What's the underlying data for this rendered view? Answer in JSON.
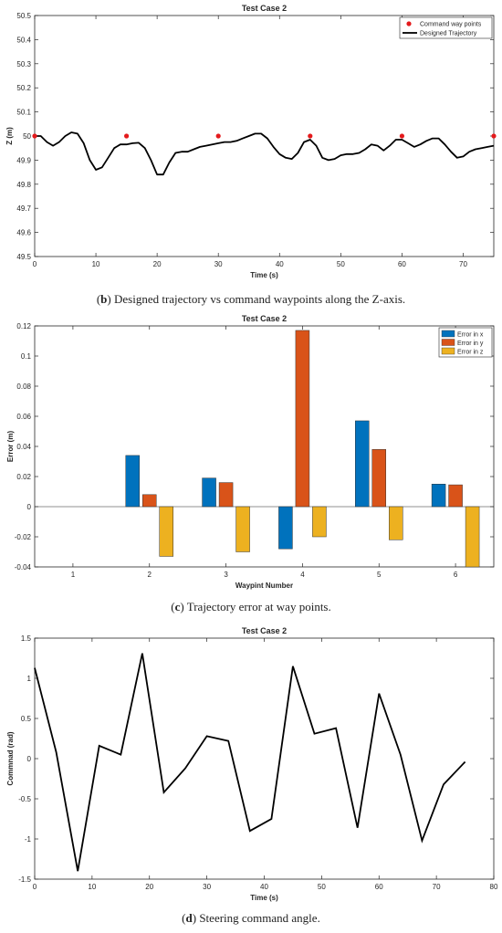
{
  "chart_data": [
    {
      "type": "line",
      "title": "Test Case 2",
      "xlabel": "Time (s)",
      "ylabel": "Z (m)",
      "xlim": [
        0,
        75
      ],
      "ylim": [
        49.5,
        50.5
      ],
      "xticks": [
        0,
        10,
        20,
        30,
        40,
        50,
        60,
        70
      ],
      "yticks": [
        49.5,
        49.6,
        49.7,
        49.8,
        49.9,
        50,
        50.1,
        50.2,
        50.3,
        50.4,
        50.5
      ],
      "ytick_labels": [
        "49.5",
        "49.6",
        "49.7",
        "49.8",
        "49.9",
        "50",
        "50.1",
        "50.2",
        "50.3",
        "50.4",
        "50.5"
      ],
      "legend": "top-right",
      "series": [
        {
          "name": "Command way points",
          "kind": "scatter",
          "color": "#e41a1c",
          "x": [
            0,
            15,
            30,
            45,
            60,
            75
          ],
          "y": [
            50,
            50,
            50,
            50,
            50,
            50
          ]
        },
        {
          "name": "Designed Trajectory",
          "kind": "line",
          "color": "#000000",
          "x": [
            0,
            1,
            2,
            3,
            4,
            5,
            6,
            7,
            8,
            9,
            10,
            11,
            12,
            13,
            14,
            15,
            16,
            17,
            18,
            19,
            20,
            21,
            22,
            23,
            24,
            25,
            26,
            27,
            28,
            29,
            30,
            31,
            32,
            33,
            34,
            35,
            36,
            37,
            38,
            39,
            40,
            41,
            42,
            43,
            44,
            45,
            46,
            47,
            48,
            49,
            50,
            51,
            52,
            53,
            54,
            55,
            56,
            57,
            58,
            59,
            60,
            61,
            62,
            63,
            64,
            65,
            66,
            67,
            68,
            69,
            70,
            71,
            72,
            73,
            74,
            75
          ],
          "y": [
            50,
            50.0,
            49.975,
            49.96,
            49.975,
            50.0,
            50.015,
            50.01,
            49.97,
            49.9,
            49.86,
            49.87,
            49.91,
            49.95,
            49.965,
            49.965,
            49.97,
            49.972,
            49.95,
            49.9,
            49.84,
            49.84,
            49.89,
            49.93,
            49.935,
            49.935,
            49.945,
            49.955,
            49.96,
            49.965,
            49.97,
            49.975,
            49.975,
            49.98,
            49.99,
            50.0,
            50.01,
            50.01,
            49.99,
            49.955,
            49.925,
            49.91,
            49.905,
            49.93,
            49.975,
            49.985,
            49.96,
            49.91,
            49.9,
            49.905,
            49.92,
            49.925,
            49.925,
            49.93,
            49.945,
            49.965,
            49.96,
            49.94,
            49.96,
            49.985,
            49.985,
            49.97,
            49.955,
            49.965,
            49.98,
            49.99,
            49.99,
            49.965,
            49.935,
            49.91,
            49.915,
            49.935,
            49.945,
            49.95,
            49.955,
            49.96
          ]
        }
      ]
    },
    {
      "type": "bar",
      "title": "Test Case 2",
      "xlabel": "Waypint Number",
      "ylabel": "Error (m)",
      "categories": [
        "1",
        "2",
        "3",
        "4",
        "5",
        "6"
      ],
      "ylim": [
        -0.04,
        0.12
      ],
      "yticks": [
        -0.04,
        -0.02,
        0,
        0.02,
        0.04,
        0.06,
        0.08,
        0.1,
        0.12
      ],
      "ytick_labels": [
        "-0.04",
        "-0.02",
        "0",
        "0.02",
        "0.04",
        "0.06",
        "0.08",
        "0.1",
        "0.12"
      ],
      "legend": "top-right",
      "series": [
        {
          "name": "Error in x",
          "color": "#0072bd",
          "values": [
            0,
            0.034,
            0.019,
            -0.028,
            0.057,
            0.015
          ]
        },
        {
          "name": "Error in y",
          "color": "#d95319",
          "values": [
            0,
            0.008,
            0.016,
            0.117,
            0.038,
            0.0145
          ]
        },
        {
          "name": "Error in z",
          "color": "#edb120",
          "values": [
            0,
            -0.033,
            -0.03,
            -0.02,
            -0.022,
            -0.04
          ]
        }
      ]
    },
    {
      "type": "line",
      "title": "Test Case 2",
      "xlabel": "Time (s)",
      "ylabel": "Commnad (rad)",
      "xlim": [
        0,
        80
      ],
      "ylim": [
        -1.5,
        1.5
      ],
      "xticks": [
        0,
        10,
        20,
        30,
        40,
        50,
        60,
        70,
        80
      ],
      "yticks": [
        -1.5,
        -1,
        -0.5,
        0,
        0.5,
        1,
        1.5
      ],
      "ytick_labels": [
        "-1.5",
        "-1",
        "-0.5",
        "0",
        "0.5",
        "1",
        "1.5"
      ],
      "series": [
        {
          "color": "#000000",
          "x": [
            0,
            3.75,
            7.5,
            11.25,
            15,
            18.75,
            22.5,
            26.25,
            30,
            33.75,
            37.5,
            41.25,
            45,
            48.75,
            52.5,
            56.25,
            60,
            63.75,
            67.5,
            71.25,
            75
          ],
          "y": [
            1.13,
            0.08,
            -1.4,
            0.16,
            0.05,
            1.31,
            -0.42,
            -0.12,
            0.28,
            0.22,
            -0.9,
            -0.75,
            1.15,
            0.31,
            0.38,
            -0.86,
            0.81,
            0.05,
            -1.02,
            -0.32,
            -0.04
          ]
        }
      ]
    }
  ],
  "captions": [
    {
      "label": "b",
      "text": " Designed trajectory vs command waypoints along the Z-axis."
    },
    {
      "label": "c",
      "text": " Trajectory error at way points."
    },
    {
      "label": "d",
      "text": " Steering command angle."
    }
  ]
}
